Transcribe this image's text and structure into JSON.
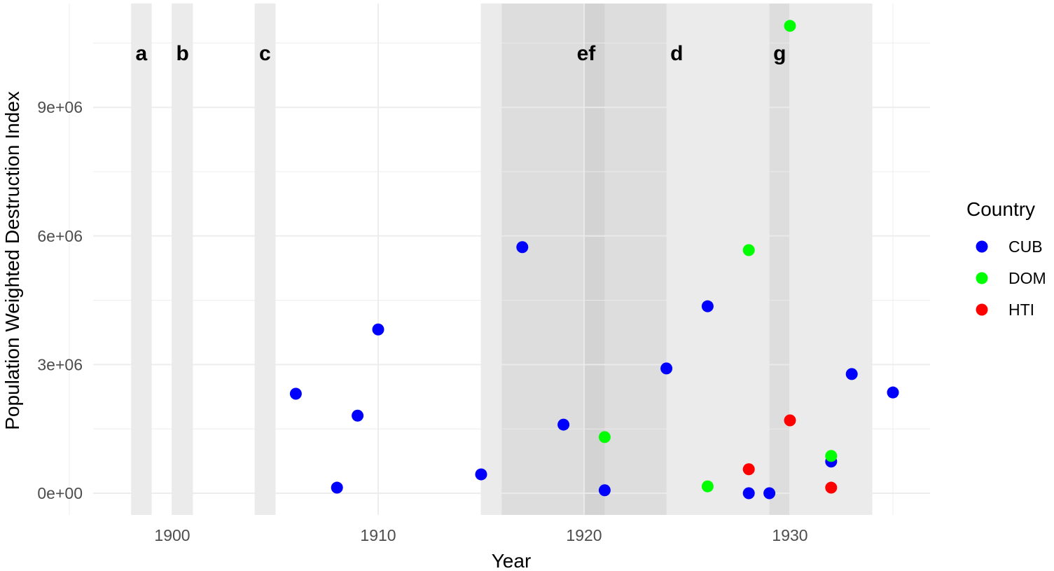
{
  "chart_data": {
    "type": "scatter",
    "title": "",
    "xlabel": "Year",
    "ylabel": "Population Weighted Destruction Index",
    "xlim": [
      1897,
      1936
    ],
    "ylim": [
      -500000,
      11000000
    ],
    "x_ticks": [
      "1900",
      "1910",
      "1920",
      "1930"
    ],
    "y_ticks": [
      "0e+00",
      "3e+06",
      "6e+06",
      "9e+06"
    ],
    "grid": true,
    "legend": {
      "title": "Country",
      "position": "right",
      "entries": [
        {
          "label": "CUB",
          "color": "#0000ff"
        },
        {
          "label": "DOM",
          "color": "#00ff00"
        },
        {
          "label": "HTI",
          "color": "#ff0000"
        }
      ]
    },
    "shaded_periods": [
      {
        "label": "a",
        "start": 1898,
        "end": 1899
      },
      {
        "label": "b",
        "start": 1900,
        "end": 1901
      },
      {
        "label": "c",
        "start": 1904,
        "end": 1905
      },
      {
        "label": "",
        "start": 1915,
        "end": 1934
      },
      {
        "label": "d",
        "start": 1916,
        "end": 1924
      },
      {
        "label": "ef",
        "start": 1920,
        "end": 1921
      },
      {
        "label": "g",
        "start": 1929,
        "end": 1930
      }
    ],
    "band_labels": [
      {
        "text": "a",
        "x": 1898.5
      },
      {
        "text": "b",
        "x": 1900.5
      },
      {
        "text": "c",
        "x": 1904.5
      },
      {
        "text": "ef",
        "x": 1920.1
      },
      {
        "text": "d",
        "x": 1924.5
      },
      {
        "text": "g",
        "x": 1929.5
      }
    ],
    "series": [
      {
        "name": "CUB",
        "color": "#0000ff",
        "points": [
          [
            1906,
            2320000
          ],
          [
            1908,
            130000
          ],
          [
            1909,
            1810000
          ],
          [
            1910,
            3820000
          ],
          [
            1915,
            440000
          ],
          [
            1917,
            5740000
          ],
          [
            1919,
            1600000
          ],
          [
            1921,
            70000
          ],
          [
            1924,
            2910000
          ],
          [
            1926,
            4360000
          ],
          [
            1928,
            0
          ],
          [
            1929,
            0
          ],
          [
            1932,
            740000
          ],
          [
            1933,
            2780000
          ],
          [
            1935,
            2350000
          ]
        ]
      },
      {
        "name": "DOM",
        "color": "#00ff00",
        "points": [
          [
            1921,
            1310000
          ],
          [
            1926,
            160000
          ],
          [
            1928,
            5670000
          ],
          [
            1930,
            10900000
          ],
          [
            1932,
            870000
          ]
        ]
      },
      {
        "name": "HTI",
        "color": "#ff0000",
        "points": [
          [
            1928,
            560000
          ],
          [
            1930,
            1700000
          ],
          [
            1932,
            130000
          ]
        ]
      }
    ]
  }
}
